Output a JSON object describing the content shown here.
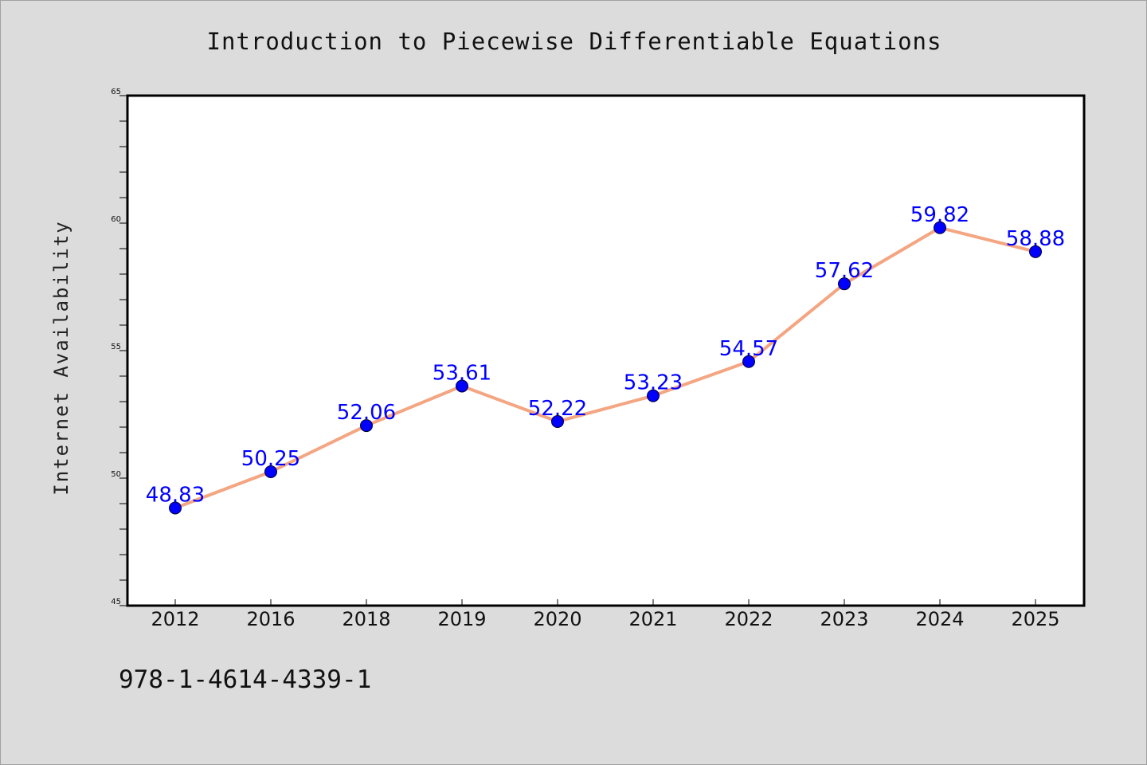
{
  "colors": {
    "background": "#dcdcdc",
    "plot_background": "#ffffff",
    "line": "#f4a582",
    "marker": "#0000ff",
    "data_label": "#0000ff"
  },
  "footer": {
    "isbn": "978-1-4614-4339-1"
  },
  "chart_data": {
    "type": "line",
    "title": "Introduction to Piecewise Differentiable Equations",
    "xlabel": "",
    "ylabel": "Internet Availability",
    "categories": [
      "2012",
      "2016",
      "2018",
      "2019",
      "2020",
      "2021",
      "2022",
      "2023",
      "2024",
      "2025"
    ],
    "series": [
      {
        "values": [
          48.83,
          50.25,
          52.06,
          53.61,
          52.22,
          53.23,
          54.57,
          57.62,
          59.82,
          58.88
        ],
        "labels": [
          "48.83",
          "50.25",
          "52.06",
          "53.61",
          "52.22",
          "53.23",
          "54.57",
          "57.62",
          "59.82",
          "58.88"
        ]
      }
    ],
    "ylim": [
      45,
      65
    ],
    "y_ticks": [
      45,
      50,
      55,
      60,
      65
    ],
    "y_tick_labels": [
      "45",
      "50",
      "55",
      "60",
      "65"
    ],
    "y_minor_step": 1,
    "grid": false,
    "legend": "none",
    "marker": "circle"
  }
}
